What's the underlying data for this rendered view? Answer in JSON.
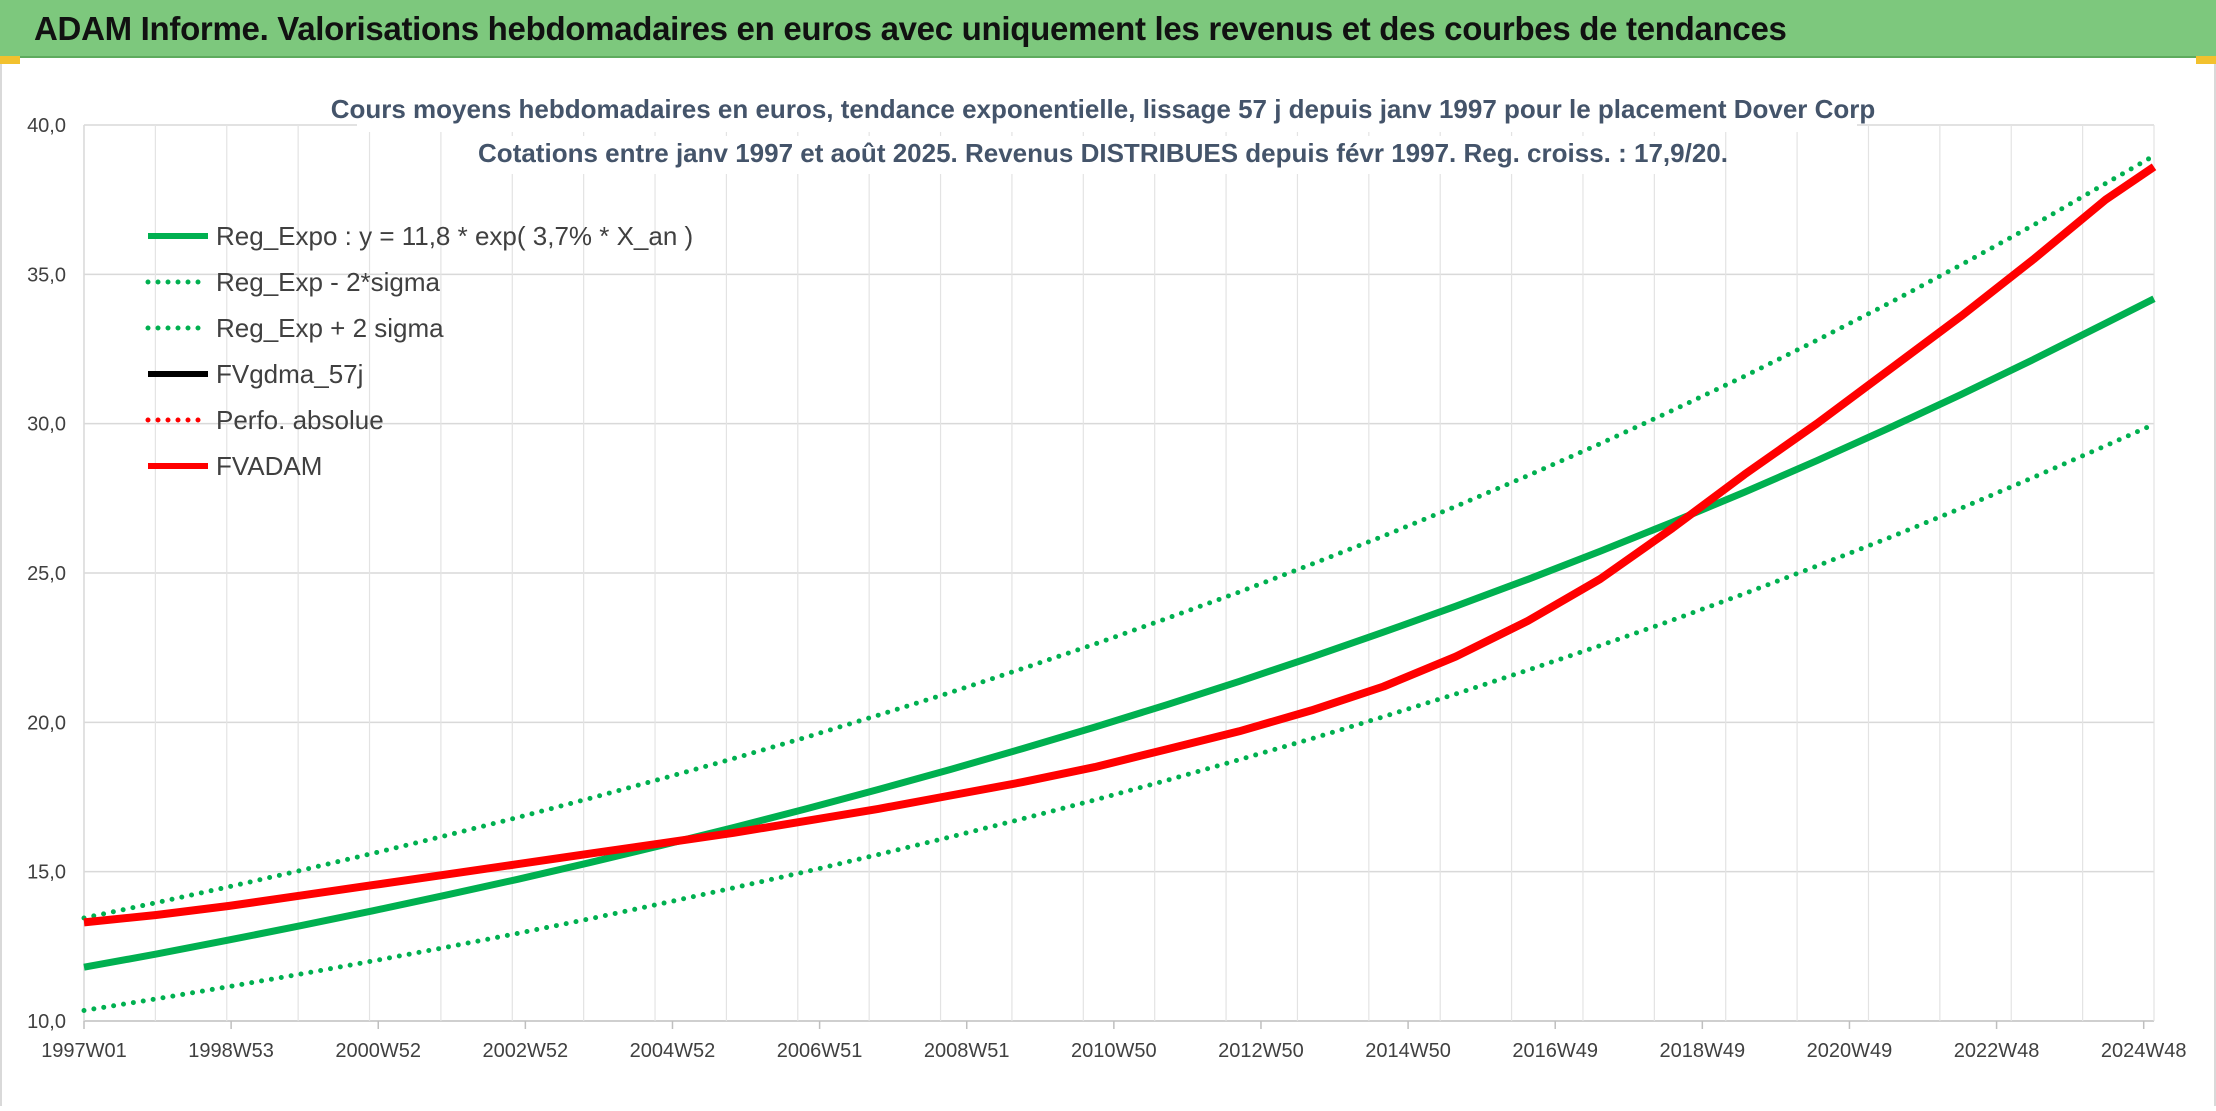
{
  "banner": {
    "title": "ADAM Informe. Valorisations hebdomadaires en euros avec uniquement les revenus et des courbes de tendances",
    "background": "#7dc87d"
  },
  "chart_data": {
    "type": "line",
    "title": "Cours moyens hebdomadaires en euros, tendance exponentielle, lissage 57 j depuis janv 1997 pour le placement Dover Corp",
    "subtitle": "Cotations entre janv 1997 et août 2025. Revenus DISTRIBUES depuis févr 1997. Reg. croiss. : 17,9/20.",
    "xlabel": "",
    "ylabel": "",
    "ylim": [
      10,
      40
    ],
    "y_ticks": [
      "40,0",
      "35,0",
      "30,0",
      "25,0",
      "20,0",
      "15,0",
      "10,0"
    ],
    "y_tick_values": [
      40,
      35,
      30,
      25,
      20,
      15,
      10
    ],
    "x_ticks": [
      "1997W01",
      "1998W53",
      "2000W52",
      "2002W52",
      "2004W52",
      "2006W51",
      "2008W51",
      "2010W50",
      "2012W50",
      "2014W50",
      "2016W49",
      "2018W49",
      "2020W49",
      "2022W48",
      "2024W48"
    ],
    "x_range": [
      "1997W01",
      "2025W35"
    ],
    "grid": true,
    "legend_position": "top-left",
    "x_years": [
      1997,
      1998,
      1999,
      2000,
      2001,
      2002,
      2003,
      2004,
      2005,
      2006,
      2007,
      2008,
      2009,
      2010,
      2011,
      2012,
      2013,
      2014,
      2015,
      2016,
      2017,
      2018,
      2019,
      2020,
      2021,
      2022,
      2023,
      2024,
      2025,
      2025.67
    ],
    "series": [
      {
        "name": "Reg_Expo : y = 11,8 * exp( 3,7% *  X_an )",
        "color": "#00b050",
        "style": "solid",
        "values": [
          11.8,
          12.24,
          12.71,
          13.19,
          13.69,
          14.21,
          14.74,
          15.3,
          15.88,
          16.48,
          17.1,
          17.75,
          18.42,
          19.12,
          19.84,
          20.59,
          21.37,
          22.18,
          23.02,
          23.89,
          24.79,
          25.73,
          26.7,
          27.71,
          28.76,
          29.85,
          30.98,
          32.15,
          33.36,
          34.18
        ]
      },
      {
        "name": "Reg_Exp - 2*sigma",
        "color": "#00b050",
        "style": "dotted",
        "values": [
          10.35,
          10.74,
          11.15,
          11.57,
          12.01,
          12.46,
          12.93,
          13.42,
          13.93,
          14.46,
          15.0,
          15.57,
          16.16,
          16.77,
          17.4,
          18.06,
          18.75,
          19.45,
          20.19,
          20.95,
          21.75,
          22.57,
          23.42,
          24.31,
          25.23,
          26.18,
          27.17,
          28.2,
          29.26,
          29.98
        ]
      },
      {
        "name": "Reg_Exp + 2 sigma",
        "color": "#00b050",
        "style": "dotted",
        "values": [
          13.45,
          13.96,
          14.49,
          15.04,
          15.61,
          16.2,
          16.81,
          17.45,
          18.11,
          18.79,
          19.5,
          20.24,
          21.0,
          21.8,
          22.62,
          23.48,
          24.36,
          25.29,
          26.24,
          27.23,
          28.26,
          29.33,
          30.44,
          31.59,
          32.79,
          34.03,
          35.32,
          36.65,
          38.04,
          38.97
        ]
      },
      {
        "name": "FVgdma_57j",
        "color": "#000000",
        "style": "solid",
        "values": []
      },
      {
        "name": "Perfo. absolue",
        "color": "#ff0000",
        "style": "dotted",
        "values": []
      },
      {
        "name": "FVADAM",
        "color": "#ff0000",
        "style": "solid",
        "values": [
          13.3,
          13.55,
          13.85,
          14.2,
          14.55,
          14.9,
          15.25,
          15.6,
          15.95,
          16.3,
          16.7,
          17.1,
          17.55,
          18.0,
          18.5,
          19.1,
          19.7,
          20.4,
          21.2,
          22.2,
          23.4,
          24.8,
          26.5,
          28.3,
          30.0,
          31.8,
          33.6,
          35.5,
          37.5,
          38.6
        ]
      }
    ]
  }
}
